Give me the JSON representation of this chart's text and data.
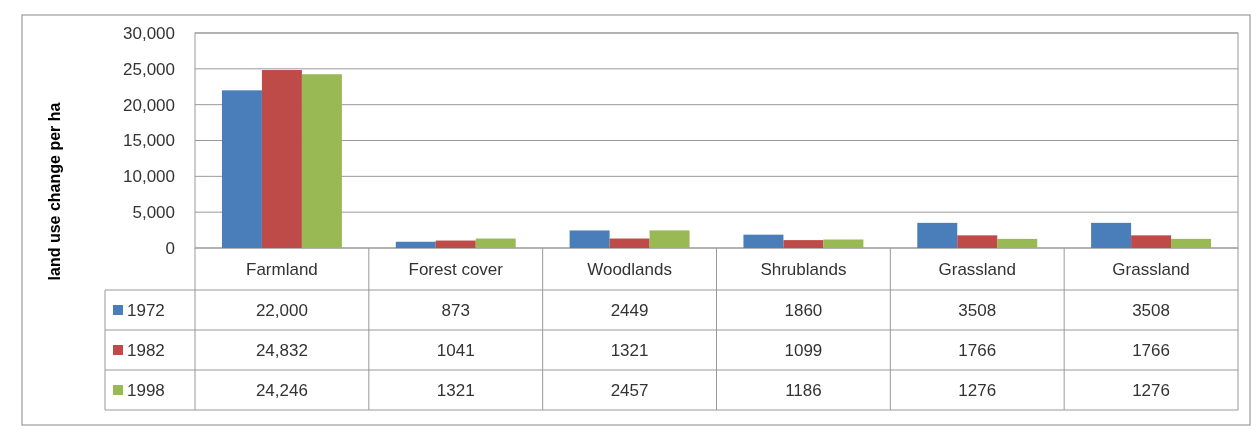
{
  "chart_data": {
    "type": "bar",
    "ylabel": "land use change per ha",
    "categories": [
      "Farmland",
      "Forest cover",
      "Woodlands",
      "Shrublands",
      "Grassland",
      "Grassland"
    ],
    "series": [
      {
        "name": "1972",
        "color": "#4a7ebb",
        "values": [
          22000,
          873,
          2449,
          1860,
          3508,
          3508
        ],
        "value_labels": [
          "22,000",
          "873",
          "2449",
          "1860",
          "3508",
          "3508"
        ]
      },
      {
        "name": "1982",
        "color": "#be4b48",
        "values": [
          24832,
          1041,
          1321,
          1099,
          1766,
          1766
        ],
        "value_labels": [
          "24,832",
          "1041",
          "1321",
          "1099",
          "1766",
          "1766"
        ]
      },
      {
        "name": "1998",
        "color": "#98b954",
        "values": [
          24246,
          1321,
          2457,
          1186,
          1276,
          1276
        ],
        "value_labels": [
          "24,246",
          "1321",
          "2457",
          "1186",
          "1276",
          "1276"
        ]
      }
    ],
    "ylim": [
      0,
      30000
    ],
    "yticks": [
      {
        "value": 0,
        "label": "0"
      },
      {
        "value": 5000,
        "label": "5,000"
      },
      {
        "value": 10000,
        "label": "10,000"
      },
      {
        "value": 15000,
        "label": "15,000"
      },
      {
        "value": 20000,
        "label": "20,000"
      },
      {
        "value": 25000,
        "label": "25,000"
      },
      {
        "value": 30000,
        "label": "30,000"
      }
    ],
    "grid": "y",
    "legend": "bottom left"
  }
}
